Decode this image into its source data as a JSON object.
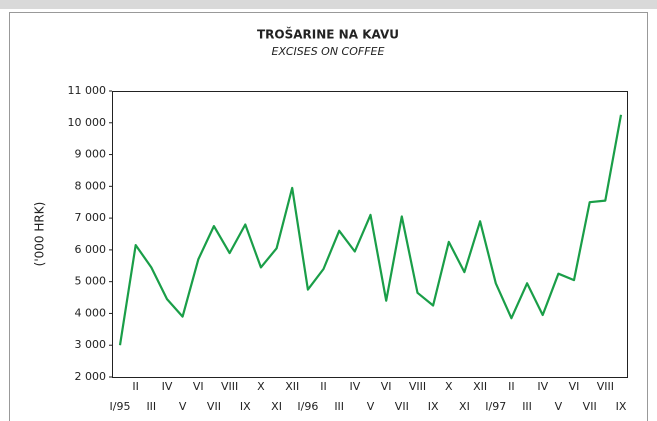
{
  "chart_data": {
    "type": "line",
    "title": "TROŠARINE NA KAVU",
    "subtitle": "EXCISES ON COFFEE",
    "y_label": "('000 HRK)",
    "categories": [
      "I/95",
      "II",
      "III",
      "IV",
      "V",
      "VI",
      "VII",
      "VIII",
      "IX",
      "X",
      "XI",
      "XII",
      "I/96",
      "II",
      "III",
      "IV",
      "V",
      "VI",
      "VII",
      "VIII",
      "IX",
      "X",
      "XI",
      "XII",
      "I/97",
      "II",
      "III",
      "IV",
      "V",
      "VI",
      "VII",
      "VIII",
      "IX"
    ],
    "series": [
      {
        "name": "Excises on coffee",
        "color": "#1a9e48",
        "values": [
          3000,
          6150,
          5450,
          4450,
          3900,
          5700,
          6750,
          5900,
          6800,
          5450,
          6050,
          7950,
          4750,
          5400,
          6600,
          5950,
          7100,
          4400,
          7050,
          4650,
          4250,
          6250,
          5300,
          6900,
          4950,
          3850,
          4950,
          3950,
          5250,
          5050,
          7500,
          7550,
          10250
        ]
      }
    ],
    "ylim": [
      2000,
      11000
    ],
    "yticks": [
      {
        "value": 2000,
        "label": "2 000"
      },
      {
        "value": 3000,
        "label": "3 000"
      },
      {
        "value": 4000,
        "label": "4 000"
      },
      {
        "value": 5000,
        "label": "5 000"
      },
      {
        "value": 6000,
        "label": "6 000"
      },
      {
        "value": 7000,
        "label": "7 000"
      },
      {
        "value": 8000,
        "label": "8 000"
      },
      {
        "value": 9000,
        "label": "9 000"
      },
      {
        "value": 10000,
        "label": "10 000"
      },
      {
        "value": 11000,
        "label": "11 000"
      }
    ]
  }
}
